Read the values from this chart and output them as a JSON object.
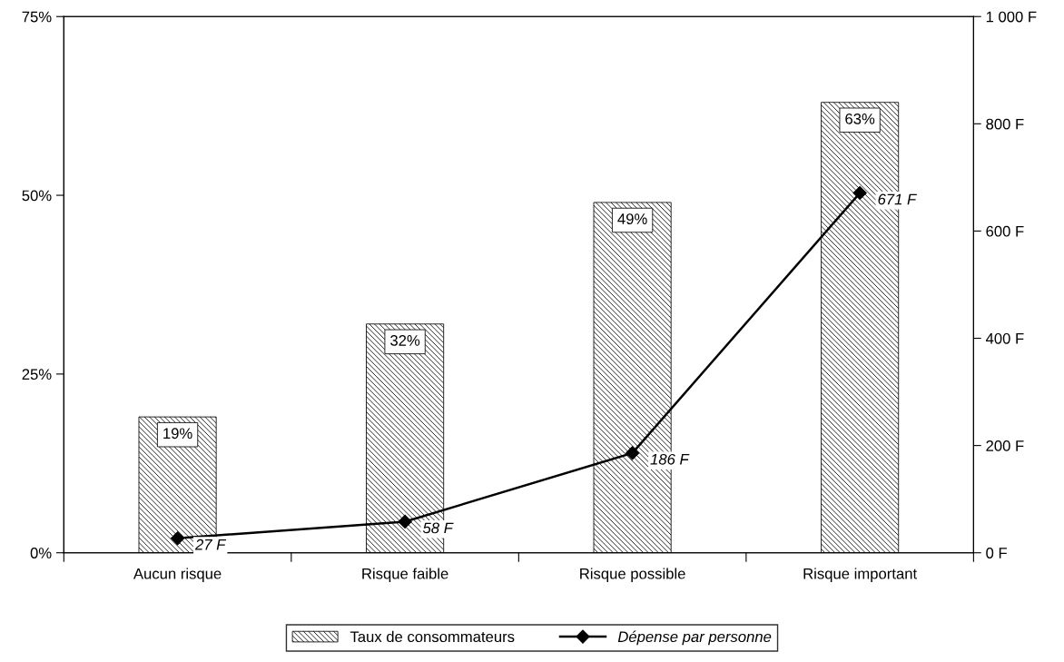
{
  "chart_data": {
    "type": "bar",
    "categories": [
      "Aucun risque",
      "Risque faible",
      "Risque possible",
      "Risque important"
    ],
    "series": [
      {
        "name": "Taux de consommateurs",
        "color": "#000000",
        "values": [
          19,
          32,
          49,
          63
        ],
        "value_labels": [
          "19%",
          "32%",
          "49%",
          "63%"
        ]
      },
      {
        "name": "Dépense par personne",
        "type": "line",
        "axis": "y2",
        "color": "#000000",
        "marker": "diamond",
        "values": [
          27,
          58,
          186,
          671
        ],
        "value_labels": [
          "27 F",
          "58 F",
          "186 F",
          "671 F"
        ]
      }
    ],
    "ylim": [
      0,
      75
    ],
    "yticks": [
      {
        "value": 0,
        "label": "0%"
      },
      {
        "value": 25,
        "label": "25%"
      },
      {
        "value": 50,
        "label": "50%"
      },
      {
        "value": 75,
        "label": "75%"
      }
    ],
    "y2lim": [
      0,
      1000
    ],
    "y2ticks": [
      {
        "value": 0,
        "label": "0 F"
      },
      {
        "value": 200,
        "label": "200 F"
      },
      {
        "value": 400,
        "label": "400 F"
      },
      {
        "value": 600,
        "label": "600 F"
      },
      {
        "value": 800,
        "label": "800 F"
      },
      {
        "value": 1000,
        "label": "1 000 F"
      }
    ],
    "grid": false,
    "legend": "bottom",
    "line_style": "solid"
  }
}
